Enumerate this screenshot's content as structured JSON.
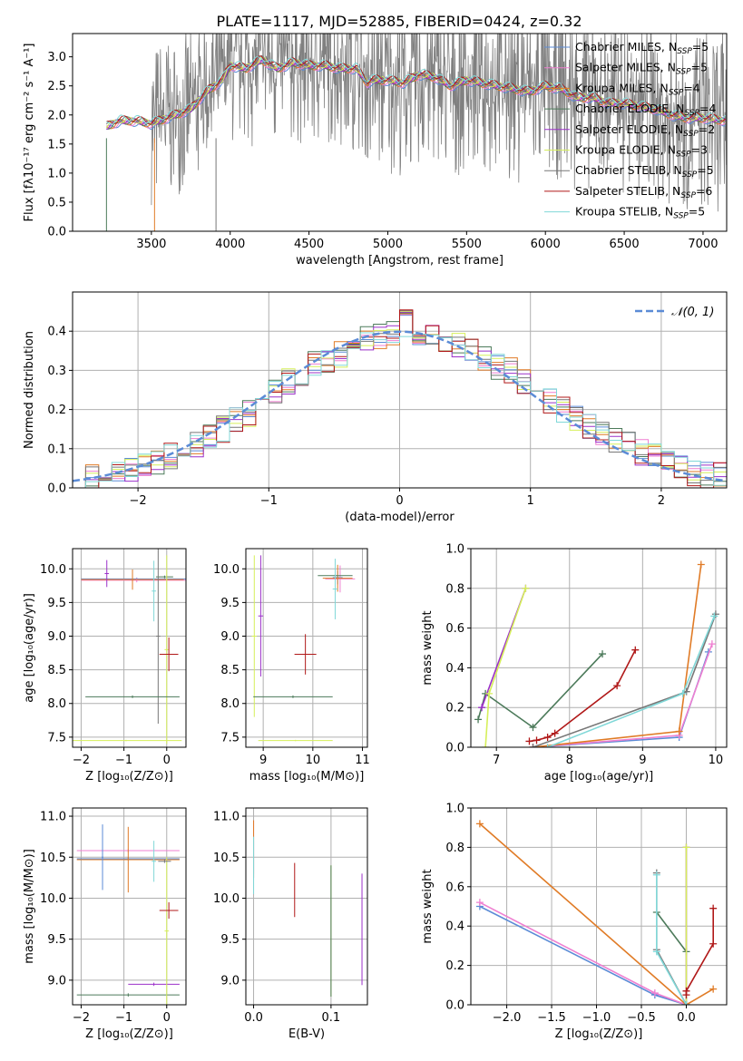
{
  "figure_title": "PLATE=1117, MJD=52885, FIBERID=0424, z=0.32",
  "colors": {
    "c1": "#5b8bd6",
    "c2": "#ef7fd1",
    "c3": "#e07b26",
    "c4": "#4c7a5a",
    "c5": "#9b30c9",
    "c6": "#d6ef5a",
    "c7": "#777777",
    "c8": "#b01818",
    "c9": "#80d8d8",
    "obs": "#808080"
  },
  "chart_data": [
    {
      "id": "spectrum",
      "type": "line",
      "xlabel": "wavelength [Angstrom, rest frame]",
      "ylabel": "Flux [fλ10⁻¹⁷ erg cm⁻² s⁻¹ A⁻¹]",
      "xlim": [
        3000,
        7150
      ],
      "ylim": [
        0,
        3.4
      ],
      "xticks": [
        3500,
        4000,
        4500,
        5000,
        5500,
        6000,
        6500,
        7000
      ],
      "yticks": [
        0.0,
        0.5,
        1.0,
        1.5,
        2.0,
        2.5,
        3.0
      ],
      "grid": false,
      "legend_position": "top-right",
      "legend": [
        "Chabrier MILES, N_SSP=5",
        "Salpeter MILES, N_SSP=5",
        "Kroupa MILES, N_SSP=4",
        "Chabrier ELODIE, N_SSP=4",
        "Salpeter ELODIE, N_SSP=2",
        "Kroupa ELODIE, N_SSP=3",
        "Chabrier STELIB, N_SSP=5",
        "Salpeter STELIB, N_SSP=6",
        "Kroupa STELIB, N_SSP=5"
      ],
      "model_continuum_x": [
        3215,
        3300,
        3400,
        3500,
        3550,
        3650,
        3750,
        3850,
        3950,
        4000,
        4100,
        4200,
        4300,
        4400,
        4500,
        4600,
        4700,
        4800,
        4870,
        4900,
        5000,
        5100,
        5200,
        5300,
        5400,
        5500,
        5600,
        5700,
        5800,
        5900,
        6000,
        6100,
        6200,
        6300,
        6400,
        6500,
        6600,
        6700,
        6800,
        6900,
        7000,
        7150
      ],
      "model_continuum_y": [
        1.8,
        1.9,
        1.9,
        1.85,
        1.9,
        2.0,
        2.1,
        2.4,
        2.6,
        2.85,
        2.8,
        2.95,
        2.8,
        2.9,
        2.85,
        2.85,
        2.8,
        2.8,
        2.55,
        2.6,
        2.6,
        2.55,
        2.7,
        2.65,
        2.5,
        2.6,
        2.55,
        2.5,
        2.45,
        2.4,
        2.5,
        2.45,
        2.3,
        2.3,
        2.2,
        2.2,
        2.15,
        2.1,
        2.0,
        1.95,
        1.95,
        1.9
      ]
    },
    {
      "id": "residuals",
      "type": "histogram",
      "xlabel": "(data-model)/error",
      "ylabel": "Normed distribution",
      "xlim": [
        -2.5,
        2.5
      ],
      "ylim": [
        0,
        0.5
      ],
      "xticks": [
        -2,
        -1,
        0,
        1,
        2
      ],
      "yticks": [
        0.0,
        0.1,
        0.2,
        0.3,
        0.4
      ],
      "grid": true,
      "legend_position": "top-right",
      "legend": [
        "𝒩(0, 1)"
      ],
      "bin_edges": [
        -2.5,
        -2.4,
        -2.3,
        -2.2,
        -2.1,
        -2.0,
        -1.9,
        -1.8,
        -1.7,
        -1.6,
        -1.5,
        -1.4,
        -1.3,
        -1.2,
        -1.1,
        -1.0,
        -0.9,
        -0.8,
        -0.7,
        -0.6,
        -0.5,
        -0.4,
        -0.3,
        -0.2,
        -0.1,
        0.0,
        0.1,
        0.2,
        0.3,
        0.4,
        0.5,
        0.6,
        0.7,
        0.8,
        0.9,
        1.0,
        1.1,
        1.2,
        1.3,
        1.4,
        1.5,
        1.6,
        1.7,
        1.8,
        1.9,
        2.0,
        2.1,
        2.2,
        2.3,
        2.4,
        2.5
      ],
      "counts": [
        0.03,
        0.03,
        0.04,
        0.05,
        0.05,
        0.06,
        0.07,
        0.08,
        0.09,
        0.11,
        0.13,
        0.15,
        0.17,
        0.19,
        0.22,
        0.24,
        0.27,
        0.29,
        0.32,
        0.33,
        0.34,
        0.37,
        0.38,
        0.39,
        0.4,
        0.42,
        0.4,
        0.39,
        0.38,
        0.36,
        0.36,
        0.33,
        0.31,
        0.3,
        0.27,
        0.24,
        0.22,
        0.2,
        0.18,
        0.16,
        0.14,
        0.12,
        0.11,
        0.09,
        0.08,
        0.06,
        0.05,
        0.04,
        0.03,
        0.03
      ]
    },
    {
      "id": "age_vs_Z",
      "type": "errorbar",
      "xlabel": "Z [log₁₀(Z/Z⊙)]",
      "ylabel": "age  [log₁₀(age/yr)]",
      "xlim": [
        -2.2,
        0.45
      ],
      "ylim": [
        7.35,
        10.3
      ],
      "xticks": [
        -2,
        -1,
        0
      ],
      "yticks": [
        7.5,
        8.0,
        8.5,
        9.0,
        9.5,
        10.0
      ],
      "grid": true,
      "points": [
        {
          "c": "c1",
          "x": -0.7,
          "xe": 1.3,
          "y": 9.85,
          "ye": 0.02
        },
        {
          "c": "c2",
          "x": -0.7,
          "xe": 1.3,
          "y": 9.83,
          "ye": 0.03
        },
        {
          "c": "c3",
          "x": -0.8,
          "xe": 1.2,
          "y": 9.84,
          "ye": 0.15
        },
        {
          "c": "c4",
          "x": -0.05,
          "xe": 0.2,
          "y": 9.88,
          "ye": 0.02
        },
        {
          "c": "c5",
          "x": -1.4,
          "xe": 0.05,
          "y": 9.93,
          "ye": 0.2
        },
        {
          "c": "c6",
          "x": 0.0,
          "xe": 0.05,
          "y": 8.8,
          "ye": 1.4
        },
        {
          "c": "c7",
          "x": -0.2,
          "xe": 0.05,
          "y": 9.0,
          "ye": 1.3
        },
        {
          "c": "c8",
          "x": 0.05,
          "xe": 0.22,
          "y": 8.73,
          "ye": 0.25
        },
        {
          "c": "c9",
          "x": -0.3,
          "xe": 0.05,
          "y": 9.67,
          "ye": 0.45
        },
        {
          "c": "c4",
          "x": -0.8,
          "xe": 1.1,
          "y": 8.1,
          "ye": 0.02
        },
        {
          "c": "c6",
          "x": -0.95,
          "xe": 1.3,
          "y": 7.45,
          "ye": 0.01
        }
      ]
    },
    {
      "id": "age_vs_mass",
      "type": "errorbar",
      "xlabel": "mass [log₁₀(M/M⊙)]",
      "ylabel": "",
      "xlim": [
        8.65,
        11.1
      ],
      "ylim": [
        7.35,
        10.3
      ],
      "xticks": [
        9,
        10,
        11
      ],
      "yticks": [
        7.5,
        8.0,
        8.5,
        9.0,
        9.5,
        10.0
      ],
      "grid": true,
      "points": [
        {
          "c": "c1",
          "x": 10.5,
          "xe": 0.1,
          "y": 9.87,
          "ye": 0.1
        },
        {
          "c": "c2",
          "x": 10.55,
          "xe": 0.3,
          "y": 9.85,
          "ye": 0.2
        },
        {
          "c": "c3",
          "x": 10.5,
          "xe": 0.3,
          "y": 9.86,
          "ye": 0.2
        },
        {
          "c": "c4",
          "x": 10.45,
          "xe": 0.35,
          "y": 9.9,
          "ye": 0.02
        },
        {
          "c": "c5",
          "x": 8.95,
          "xe": 0.05,
          "y": 9.3,
          "ye": 0.9
        },
        {
          "c": "c6",
          "x": 8.82,
          "xe": 0.05,
          "y": 9.0,
          "ye": 1.2
        },
        {
          "c": "c4",
          "x": 9.6,
          "xe": 0.8,
          "y": 8.1,
          "ye": 0.02
        },
        {
          "c": "c6",
          "x": 9.65,
          "xe": 0.75,
          "y": 7.45,
          "ye": 0.01
        },
        {
          "c": "c8",
          "x": 9.85,
          "xe": 0.22,
          "y": 8.73,
          "ye": 0.3
        },
        {
          "c": "c9",
          "x": 10.45,
          "xe": 0.05,
          "y": 9.7,
          "ye": 0.45
        }
      ]
    },
    {
      "id": "weight_vs_age",
      "type": "line",
      "xlabel": "age  [log₁₀(age/yr)]",
      "ylabel": "mass weight",
      "xlim": [
        6.65,
        10.15
      ],
      "ylim": [
        0,
        1
      ],
      "xticks": [
        7,
        8,
        9,
        10
      ],
      "yticks": [
        0.0,
        0.2,
        0.4,
        0.6,
        0.8,
        1.0
      ],
      "grid": true,
      "series": [
        {
          "c": "c1",
          "x": [
            7.5,
            9.5,
            9.9
          ],
          "y": [
            0.0,
            0.05,
            0.48
          ]
        },
        {
          "c": "c2",
          "x": [
            7.5,
            9.5,
            9.95
          ],
          "y": [
            0.0,
            0.06,
            0.52
          ]
        },
        {
          "c": "c3",
          "x": [
            7.5,
            9.5,
            9.8
          ],
          "y": [
            0.0,
            0.08,
            0.92
          ]
        },
        {
          "c": "c4",
          "x": [
            6.75,
            6.85,
            7.5,
            8.45
          ],
          "y": [
            0.14,
            0.27,
            0.1,
            0.47
          ]
        },
        {
          "c": "c5",
          "x": [
            6.8,
            7.4
          ],
          "y": [
            0.2,
            0.8
          ]
        },
        {
          "c": "c6",
          "x": [
            6.85,
            6.9,
            7.4
          ],
          "y": [
            0.0,
            0.27,
            0.8
          ]
        },
        {
          "c": "c7",
          "x": [
            7.5,
            9.6,
            10.0
          ],
          "y": [
            0.0,
            0.28,
            0.67
          ]
        },
        {
          "c": "c8",
          "x": [
            7.45,
            7.55,
            7.7,
            7.8,
            8.65,
            8.9
          ],
          "y": [
            0.03,
            0.035,
            0.05,
            0.07,
            0.31,
            0.49
          ]
        },
        {
          "c": "c9",
          "x": [
            7.7,
            9.55,
            9.98
          ],
          "y": [
            0.0,
            0.27,
            0.66
          ]
        }
      ]
    },
    {
      "id": "mass_vs_Z",
      "type": "errorbar",
      "xlabel": "Z [log₁₀(Z/Z⊙)]",
      "ylabel": "mass [log₁₀(M/M⊙)]",
      "xlim": [
        -2.2,
        0.45
      ],
      "ylim": [
        8.7,
        11.1
      ],
      "xticks": [
        -2,
        -1,
        0
      ],
      "yticks": [
        9.0,
        9.5,
        10.0,
        10.5,
        11.0
      ],
      "grid": true,
      "points": [
        {
          "c": "c1",
          "x": -0.9,
          "xe": 1.2,
          "y": 10.48,
          "ye": 0.02
        },
        {
          "c": "c2",
          "x": -0.9,
          "xe": 1.2,
          "y": 10.58,
          "ye": 0.02
        },
        {
          "c": "c3",
          "x": -0.9,
          "xe": 1.2,
          "y": 10.47,
          "ye": 0.4
        },
        {
          "c": "c4",
          "x": -0.9,
          "xe": 1.2,
          "y": 8.82,
          "ye": 0.02
        },
        {
          "c": "c5",
          "x": -0.3,
          "xe": 0.6,
          "y": 8.95,
          "ye": 0.02
        },
        {
          "c": "c6",
          "x": 0.0,
          "xe": 0.05,
          "y": 9.6,
          "ye": 0.9
        },
        {
          "c": "c8",
          "x": 0.05,
          "xe": 0.22,
          "y": 9.85,
          "ye": 0.1
        },
        {
          "c": "c9",
          "x": -0.3,
          "xe": 0.05,
          "y": 10.45,
          "ye": 0.25
        },
        {
          "c": "c7",
          "x": -0.05,
          "xe": 0.15,
          "y": 10.45,
          "ye": 0.02
        },
        {
          "c": "c1",
          "x": -1.5,
          "xe": 0.02,
          "y": 10.5,
          "ye": 0.4
        }
      ]
    },
    {
      "id": "mass_vs_EBV",
      "type": "errorbar",
      "xlabel": "E(B-V)",
      "ylabel": "",
      "xlim": [
        -0.01,
        0.147
      ],
      "ylim": [
        8.7,
        11.1
      ],
      "xticks": [
        0.0,
        0.1
      ],
      "yticks": [
        9.0,
        9.5,
        10.0,
        10.5,
        11.0
      ],
      "grid": true,
      "points": [
        {
          "c": "c1",
          "x": 0.0,
          "xe": 0,
          "y": 10.5,
          "ye": 0.2
        },
        {
          "c": "c2",
          "x": 0.0,
          "xe": 0,
          "y": 10.6,
          "ye": 0.35
        },
        {
          "c": "c3",
          "x": 0.0,
          "xe": 0,
          "y": 10.6,
          "ye": 0.35
        },
        {
          "c": "c9",
          "x": 0.0,
          "xe": 0,
          "y": 10.4,
          "ye": 0.35
        },
        {
          "c": "c8",
          "x": 0.053,
          "xe": 0,
          "y": 10.1,
          "ye": 0.33
        },
        {
          "c": "c6",
          "x": 0.1,
          "xe": 0,
          "y": 9.6,
          "ye": 0.8
        },
        {
          "c": "c4",
          "x": 0.1,
          "xe": 0,
          "y": 9.6,
          "ye": 0.8
        },
        {
          "c": "c5",
          "x": 0.14,
          "xe": 0,
          "y": 9.62,
          "ye": 0.68
        }
      ]
    },
    {
      "id": "weight_vs_Z",
      "type": "line",
      "xlabel": "Z [log₁₀(Z/Z⊙)]",
      "ylabel": "mass weight",
      "xlim": [
        -2.4,
        0.45
      ],
      "ylim": [
        0,
        1
      ],
      "xticks": [
        -2.0,
        -1.5,
        -1.0,
        -0.5,
        0.0
      ],
      "yticks": [
        0.0,
        0.2,
        0.4,
        0.6,
        0.8,
        1.0
      ],
      "grid": true,
      "series": [
        {
          "c": "c1",
          "x": [
            -2.3,
            -0.35,
            0.0
          ],
          "y": [
            0.5,
            0.05,
            0.0
          ]
        },
        {
          "c": "c2",
          "x": [
            -2.3,
            -0.35,
            0.0
          ],
          "y": [
            0.52,
            0.06,
            0.0
          ]
        },
        {
          "c": "c3",
          "x": [
            -2.3,
            0.0,
            0.3
          ],
          "y": [
            0.92,
            0.0,
            0.08
          ]
        },
        {
          "c": "c4",
          "x": [
            -0.33,
            0.0
          ],
          "y": [
            0.47,
            0.27
          ]
        },
        {
          "c": "c5",
          "x": [
            0.0,
            0.0
          ],
          "y": [
            0.0,
            0.8
          ]
        },
        {
          "c": "c6",
          "x": [
            0.0,
            0.0
          ],
          "y": [
            0.0,
            0.8
          ]
        },
        {
          "c": "c7",
          "x": [
            -0.33,
            -0.33,
            0.0
          ],
          "y": [
            0.67,
            0.28,
            0.0
          ]
        },
        {
          "c": "c8",
          "x": [
            0.0,
            0.0,
            0.3,
            0.3
          ],
          "y": [
            0.05,
            0.07,
            0.31,
            0.49
          ]
        },
        {
          "c": "c9",
          "x": [
            -0.33,
            -0.33,
            0.0
          ],
          "y": [
            0.66,
            0.27,
            0.0
          ]
        }
      ]
    }
  ]
}
